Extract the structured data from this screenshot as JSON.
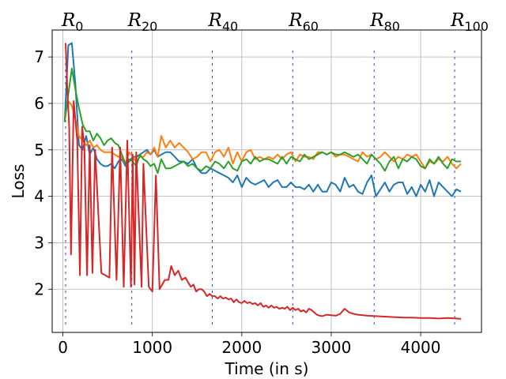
{
  "chart_data": {
    "type": "line",
    "xlabel": "Time (in s)",
    "ylabel": "Loss",
    "xlim": [
      -120,
      4680
    ],
    "ylim": [
      1.07,
      7.58
    ],
    "xticks": [
      0,
      1000,
      2000,
      3000,
      4000
    ],
    "xtick_labels": [
      "0",
      "1000",
      "2000",
      "3000",
      "4000"
    ],
    "yticks": [
      2,
      3,
      4,
      5,
      6,
      7
    ],
    "ytick_labels": [
      "2",
      "3",
      "4",
      "5",
      "6",
      "7"
    ],
    "grid": true,
    "round_markers": [
      {
        "base": "R",
        "sub": "0",
        "x": 30
      },
      {
        "base": "R",
        "sub": "20",
        "x": 770
      },
      {
        "base": "R",
        "sub": "40",
        "x": 1670
      },
      {
        "base": "R",
        "sub": "60",
        "x": 2570
      },
      {
        "base": "R",
        "sub": "80",
        "x": 3480
      },
      {
        "base": "R",
        "sub": "100",
        "x": 4380
      }
    ],
    "series": [
      {
        "color": "#1f77b4",
        "x": [
          20,
          60,
          100,
          140,
          180,
          220,
          260,
          300,
          340,
          380,
          420,
          460,
          500,
          540,
          580,
          620,
          660,
          700,
          740,
          780,
          820,
          860,
          900,
          940,
          980,
          1020,
          1060,
          1100,
          1150,
          1200,
          1250,
          1300,
          1350,
          1400,
          1450,
          1500,
          1550,
          1600,
          1650,
          1700,
          1750,
          1800,
          1850,
          1900,
          1950,
          2000,
          2050,
          2100,
          2150,
          2200,
          2250,
          2300,
          2350,
          2400,
          2450,
          2500,
          2550,
          2600,
          2650,
          2700,
          2750,
          2800,
          2850,
          2900,
          2950,
          3000,
          3050,
          3100,
          3150,
          3200,
          3250,
          3300,
          3350,
          3400,
          3450,
          3500,
          3550,
          3600,
          3650,
          3700,
          3750,
          3800,
          3850,
          3900,
          3950,
          4000,
          4050,
          4100,
          4150,
          4200,
          4250,
          4300,
          4350,
          4400,
          4450
        ],
        "y": [
          5.6,
          7.25,
          7.3,
          6.4,
          5.1,
          5.0,
          5.3,
          4.9,
          5.05,
          4.8,
          4.7,
          4.65,
          4.65,
          4.7,
          4.6,
          4.75,
          4.8,
          4.65,
          4.75,
          4.85,
          4.85,
          4.9,
          4.95,
          5.0,
          4.9,
          5.0,
          4.85,
          4.9,
          4.95,
          4.95,
          4.85,
          4.75,
          4.75,
          4.7,
          4.8,
          4.6,
          4.5,
          4.5,
          4.6,
          4.55,
          4.5,
          4.45,
          4.4,
          4.3,
          4.45,
          4.2,
          4.4,
          4.3,
          4.25,
          4.3,
          4.35,
          4.2,
          4.3,
          4.35,
          4.2,
          4.2,
          4.3,
          4.2,
          4.2,
          4.15,
          4.25,
          4.1,
          4.25,
          4.1,
          4.1,
          4.3,
          4.25,
          4.1,
          4.4,
          4.2,
          4.25,
          4.1,
          4.05,
          4.3,
          4.45,
          4.0,
          4.15,
          4.3,
          4.1,
          4.25,
          4.3,
          4.3,
          4.05,
          4.2,
          4.0,
          4.25,
          4.1,
          4.35,
          4.0,
          4.3,
          4.2,
          4.1,
          4.0,
          4.15,
          4.1
        ]
      },
      {
        "color": "#ff7f0e",
        "x": [
          20,
          60,
          100,
          140,
          180,
          220,
          260,
          300,
          340,
          380,
          420,
          460,
          500,
          540,
          580,
          620,
          660,
          700,
          740,
          780,
          820,
          860,
          900,
          940,
          980,
          1020,
          1060,
          1100,
          1150,
          1200,
          1250,
          1300,
          1350,
          1400,
          1450,
          1500,
          1550,
          1600,
          1650,
          1700,
          1750,
          1800,
          1850,
          1900,
          1950,
          2000,
          2050,
          2100,
          2150,
          2200,
          2250,
          2300,
          2350,
          2400,
          2450,
          2500,
          2550,
          2600,
          2650,
          2700,
          2750,
          2800,
          2850,
          2900,
          2950,
          3000,
          3050,
          3100,
          3150,
          3200,
          3250,
          3300,
          3350,
          3400,
          3450,
          3500,
          3550,
          3600,
          3650,
          3700,
          3750,
          3800,
          3850,
          3900,
          3950,
          4000,
          4050,
          4100,
          4150,
          4200,
          4250,
          4300,
          4350,
          4400,
          4450
        ],
        "y": [
          5.7,
          6.05,
          5.95,
          5.65,
          5.3,
          5.2,
          5.1,
          5.2,
          5.05,
          5.1,
          5.0,
          4.95,
          4.95,
          4.95,
          4.9,
          4.85,
          4.85,
          4.7,
          4.95,
          4.85,
          4.75,
          4.85,
          4.85,
          4.95,
          4.9,
          5.05,
          4.85,
          5.3,
          5.05,
          5.2,
          5.05,
          5.15,
          5.05,
          4.95,
          4.8,
          4.85,
          4.95,
          4.95,
          4.75,
          4.95,
          5.0,
          4.85,
          5.05,
          4.7,
          4.95,
          4.75,
          4.95,
          5.0,
          4.8,
          4.85,
          4.8,
          4.85,
          4.8,
          4.9,
          4.8,
          4.9,
          4.95,
          4.75,
          4.9,
          4.85,
          4.85,
          4.8,
          4.95,
          4.95,
          4.9,
          4.95,
          4.85,
          4.9,
          4.9,
          4.85,
          4.8,
          4.75,
          4.95,
          4.85,
          4.9,
          4.8,
          4.85,
          4.95,
          4.85,
          4.75,
          4.85,
          4.8,
          4.9,
          4.85,
          4.9,
          4.75,
          4.6,
          4.75,
          4.7,
          4.8,
          4.75,
          4.85,
          4.7,
          4.6,
          4.7
        ]
      },
      {
        "color": "#2ca02c",
        "x": [
          20,
          60,
          100,
          140,
          180,
          220,
          260,
          300,
          340,
          380,
          420,
          460,
          500,
          540,
          580,
          620,
          660,
          700,
          740,
          780,
          820,
          860,
          900,
          940,
          980,
          1020,
          1060,
          1100,
          1150,
          1200,
          1250,
          1300,
          1350,
          1400,
          1450,
          1500,
          1550,
          1600,
          1650,
          1700,
          1750,
          1800,
          1850,
          1900,
          1950,
          2000,
          2050,
          2100,
          2150,
          2200,
          2250,
          2300,
          2350,
          2400,
          2450,
          2500,
          2550,
          2600,
          2650,
          2700,
          2750,
          2800,
          2850,
          2900,
          2950,
          3000,
          3050,
          3100,
          3150,
          3200,
          3250,
          3300,
          3350,
          3400,
          3450,
          3500,
          3550,
          3600,
          3650,
          3700,
          3750,
          3800,
          3850,
          3900,
          3950,
          4000,
          4050,
          4100,
          4150,
          4200,
          4250,
          4300,
          4350,
          4400,
          4450
        ],
        "y": [
          5.6,
          6.2,
          6.75,
          6.3,
          5.9,
          5.55,
          5.4,
          5.4,
          5.2,
          5.35,
          5.25,
          5.1,
          5.2,
          5.25,
          5.15,
          5.1,
          4.9,
          4.7,
          4.8,
          4.75,
          4.65,
          4.9,
          4.8,
          4.75,
          4.65,
          4.7,
          4.5,
          4.8,
          4.6,
          4.6,
          4.65,
          4.7,
          4.75,
          4.65,
          4.7,
          4.6,
          4.55,
          4.65,
          4.6,
          4.75,
          4.7,
          4.6,
          4.75,
          4.6,
          4.55,
          4.75,
          4.8,
          4.7,
          4.85,
          4.75,
          4.8,
          4.8,
          4.75,
          4.7,
          4.85,
          4.7,
          4.85,
          4.8,
          4.75,
          4.9,
          4.8,
          4.85,
          4.9,
          4.95,
          4.9,
          4.95,
          4.9,
          4.9,
          4.95,
          4.9,
          4.85,
          4.9,
          4.8,
          4.7,
          4.9,
          4.8,
          4.7,
          4.55,
          4.75,
          4.85,
          4.6,
          4.8,
          4.75,
          4.85,
          4.8,
          4.65,
          4.6,
          4.8,
          4.7,
          4.85,
          4.7,
          4.6,
          4.8,
          4.75,
          4.75
        ]
      },
      {
        "color": "#d62728",
        "x": [
          30,
          50,
          70,
          90,
          120,
          160,
          190,
          215,
          240,
          270,
          300,
          330,
          360,
          430,
          520,
          550,
          600,
          640,
          680,
          720,
          760,
          780,
          800,
          820,
          880,
          900,
          960,
          1000,
          1040,
          1080,
          1140,
          1180,
          1210,
          1250,
          1290,
          1330,
          1370,
          1400,
          1430,
          1460,
          1490,
          1520,
          1550,
          1580,
          1610,
          1640,
          1670,
          1700,
          1730,
          1760,
          1790,
          1820,
          1850,
          1880,
          1910,
          1940,
          1970,
          2000,
          2030,
          2060,
          2090,
          2120,
          2150,
          2180,
          2210,
          2240,
          2270,
          2300,
          2330,
          2360,
          2390,
          2420,
          2450,
          2480,
          2510,
          2540,
          2570,
          2600,
          2630,
          2660,
          2690,
          2720,
          2750,
          2780,
          2810,
          2840,
          2870,
          2900,
          2950,
          3000,
          3050,
          3100,
          3150,
          3200,
          3250,
          3300,
          3400,
          3500,
          3600,
          3700,
          3800,
          3900,
          4000,
          4100,
          4200,
          4300,
          4400,
          4450
        ],
        "y": [
          7.3,
          6.3,
          5.5,
          2.75,
          6.05,
          5.2,
          2.3,
          5.5,
          5.1,
          2.3,
          5.1,
          2.35,
          5.0,
          2.35,
          2.25,
          5.05,
          2.2,
          5.05,
          2.05,
          5.2,
          2.05,
          4.9,
          2.1,
          4.95,
          2.05,
          4.7,
          2.05,
          1.95,
          4.45,
          2.0,
          2.2,
          2.2,
          2.5,
          2.3,
          2.4,
          2.2,
          2.25,
          2.15,
          2.05,
          2.1,
          1.95,
          2.0,
          2.0,
          1.95,
          1.85,
          1.9,
          1.85,
          1.85,
          1.8,
          1.85,
          1.8,
          1.82,
          1.78,
          1.8,
          1.72,
          1.78,
          1.72,
          1.7,
          1.75,
          1.7,
          1.72,
          1.68,
          1.7,
          1.65,
          1.7,
          1.62,
          1.65,
          1.6,
          1.65,
          1.6,
          1.62,
          1.58,
          1.6,
          1.58,
          1.62,
          1.55,
          1.6,
          1.55,
          1.58,
          1.52,
          1.55,
          1.5,
          1.58,
          1.55,
          1.5,
          1.45,
          1.43,
          1.42,
          1.45,
          1.44,
          1.43,
          1.47,
          1.58,
          1.5,
          1.47,
          1.45,
          1.43,
          1.42,
          1.41,
          1.4,
          1.39,
          1.39,
          1.38,
          1.38,
          1.37,
          1.38,
          1.37,
          1.36
        ]
      }
    ]
  }
}
